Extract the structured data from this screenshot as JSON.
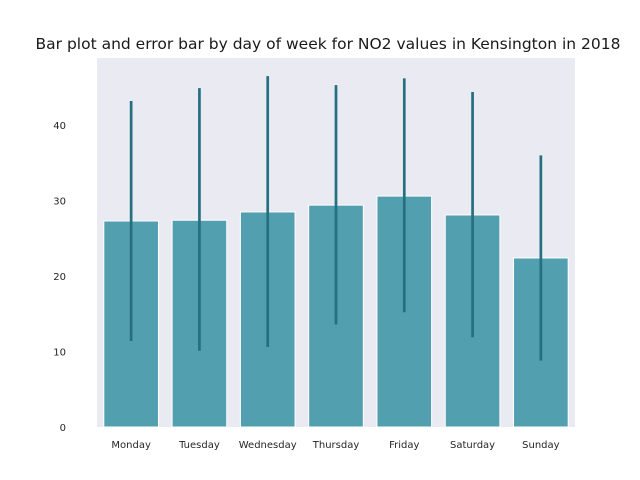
{
  "chart_data": {
    "type": "bar",
    "title": "Bar plot and error bar by day of week for NO2 values in Kensington in 2018",
    "xlabel": "",
    "ylabel": "",
    "categories": [
      "Monday",
      "Tuesday",
      "Wednesday",
      "Thursday",
      "Friday",
      "Saturday",
      "Sunday"
    ],
    "values": [
      27.3,
      27.4,
      28.5,
      29.4,
      30.6,
      28.1,
      22.4
    ],
    "error_bars": [
      {
        "low": 11.4,
        "high": 43.2
      },
      {
        "low": 10.1,
        "high": 44.9
      },
      {
        "low": 10.6,
        "high": 46.5
      },
      {
        "low": 13.6,
        "high": 45.3
      },
      {
        "low": 15.2,
        "high": 46.2
      },
      {
        "low": 11.9,
        "high": 44.4
      },
      {
        "low": 8.8,
        "high": 36.0
      }
    ],
    "y_ticks": [
      0,
      10,
      20,
      30,
      40
    ],
    "ylim": [
      0,
      48.9
    ],
    "grid": false,
    "colors": {
      "bar": "#529fb0",
      "error_bar": "#256f80",
      "plot_background": "#eaeaf2",
      "bar_edge": "#ffffff"
    }
  }
}
